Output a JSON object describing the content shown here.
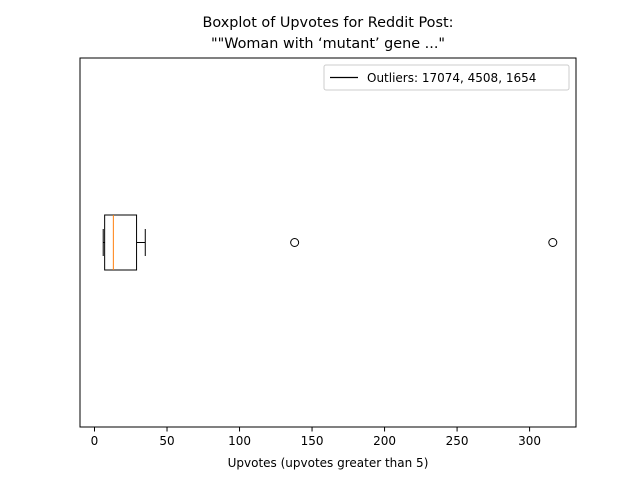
{
  "chart_data": {
    "type": "boxplot",
    "orientation": "horizontal",
    "title_line1": "Boxplot of Upvotes for Reddit Post:",
    "title_line2": "\"\"Woman with ‘mutant’ gene ...\"",
    "xlabel": "Upvotes (upvotes greater than 5)",
    "ylabel": "",
    "xlim": [
      -10,
      332
    ],
    "xticks": [
      0,
      50,
      100,
      150,
      200,
      250,
      300
    ],
    "grid": false,
    "legend": {
      "placement": "top-right",
      "entries": [
        "Outliers: 17074, 4508, 1654"
      ]
    },
    "box": {
      "whisker_low": 6,
      "q1": 7,
      "median": 13,
      "q3": 29,
      "whisker_high": 35,
      "outliers_shown": [
        138,
        316
      ]
    },
    "colors": {
      "box": "#000000",
      "median": "#ff7f0e",
      "outlier_edge": "#000000"
    }
  }
}
